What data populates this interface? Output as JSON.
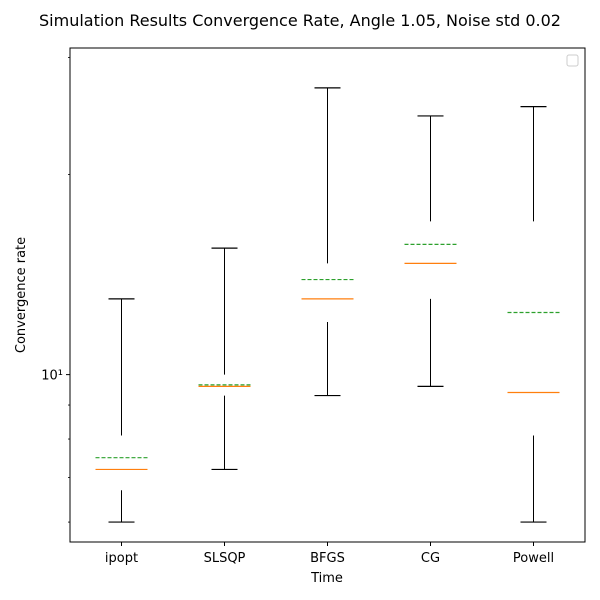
{
  "chart_data": {
    "type": "box",
    "title": "Simulation Results Convergence Rate, Angle 1.05, Noise std 0.02",
    "xlabel": "Time",
    "ylabel": "Convergence rate",
    "yscale": "log",
    "ylim": [
      5.6,
      31.0
    ],
    "yticks": [
      {
        "value": 10,
        "label": "10¹"
      }
    ],
    "legend": {
      "placement": "top-right",
      "entries": []
    },
    "grid": false,
    "colors": {
      "whisker": "#000000",
      "median": "#ff7f0e",
      "mean": "#2ca02c"
    },
    "categories": [
      "ipopt",
      "SLSQP",
      "BFGS",
      "CG",
      "Powell"
    ],
    "boxes": [
      {
        "category": "ipopt",
        "whislo": 6.0,
        "q1": 6.7,
        "median": 7.2,
        "mean": 7.5,
        "q3": 8.1,
        "whishi": 13.0
      },
      {
        "category": "SLSQP",
        "whislo": 7.2,
        "q1": 9.3,
        "median": 9.6,
        "mean": 9.65,
        "q3": 10.0,
        "whishi": 15.5
      },
      {
        "category": "BFGS",
        "whislo": 9.3,
        "q1": 12.0,
        "median": 13.0,
        "mean": 13.9,
        "q3": 14.7,
        "whishi": 27.0
      },
      {
        "category": "CG",
        "whislo": 9.6,
        "q1": 13.0,
        "median": 14.7,
        "mean": 15.7,
        "q3": 17.0,
        "whishi": 24.5
      },
      {
        "category": "Powell",
        "whislo": 6.0,
        "q1": 8.1,
        "median": 9.4,
        "mean": 12.4,
        "q3": 17.0,
        "whishi": 25.3
      }
    ]
  }
}
